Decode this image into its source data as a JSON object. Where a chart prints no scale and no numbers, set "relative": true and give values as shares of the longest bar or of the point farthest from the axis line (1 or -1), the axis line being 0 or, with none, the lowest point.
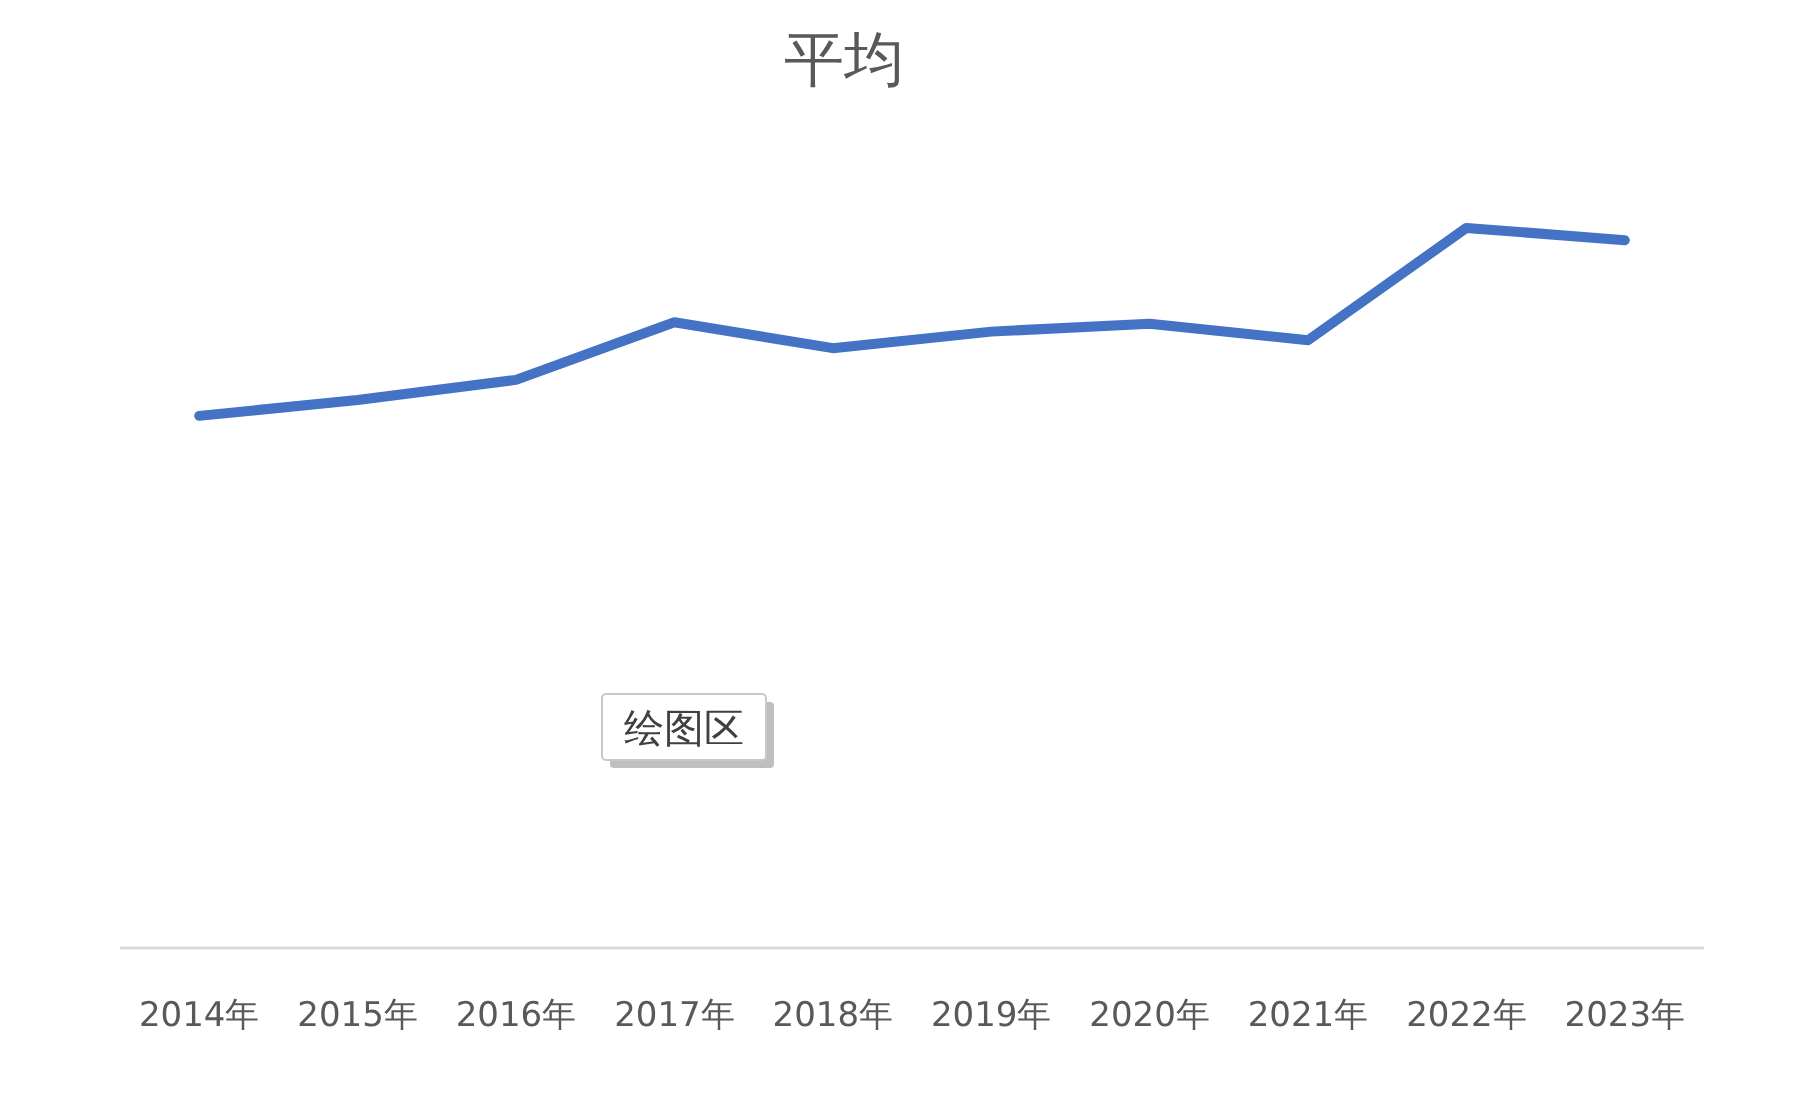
{
  "chart_data": {
    "type": "line",
    "title": "平均",
    "categories": [
      "2014年",
      "2015年",
      "2016年",
      "2017年",
      "2018年",
      "2019年",
      "2020年",
      "2021年",
      "2022年",
      "2023年"
    ],
    "series": [
      {
        "color": "#4472c4",
        "values": [
          0.739,
          0.761,
          0.789,
          0.869,
          0.833,
          0.856,
          0.867,
          0.844,
          1,
          0.983
        ]
      }
    ],
    "relative": true,
    "grid": false,
    "marker": "none",
    "line_style": "solid",
    "annotations": [
      "绘图区"
    ]
  }
}
